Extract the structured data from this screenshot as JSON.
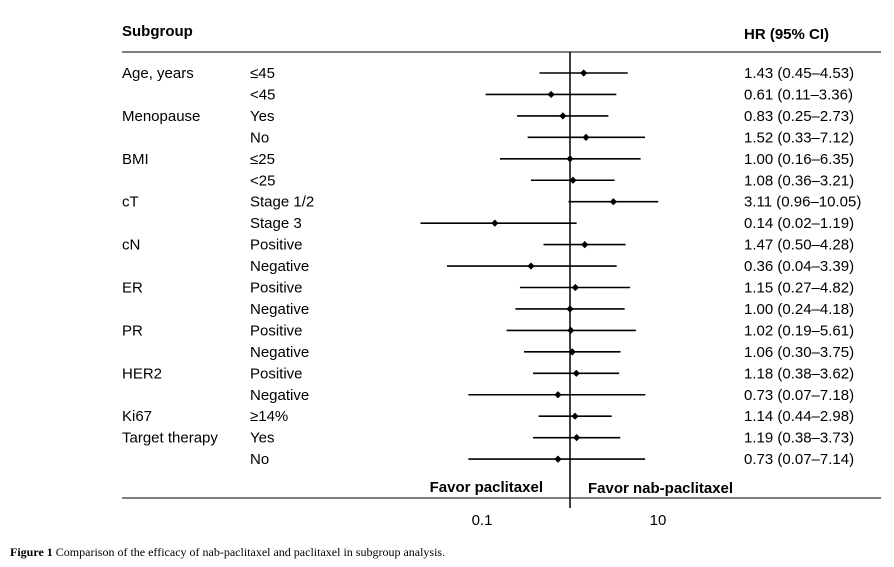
{
  "chart_data": {
    "type": "forest",
    "headers": {
      "subgroup": "Subgroup",
      "hr": "HR (95% CI)"
    },
    "x_scale": "log",
    "xlim": [
      0.01,
      20
    ],
    "null_value": 1,
    "x_ticks": [
      {
        "value": 0.1,
        "label": "0.1"
      },
      {
        "value": 10,
        "label": "10"
      }
    ],
    "favor_left": "Favor paclitaxel",
    "favor_right": "Favor nab-paclitaxel",
    "rows": [
      {
        "group": "Age, years",
        "level": "≤45",
        "hr": 1.43,
        "lo": 0.45,
        "hi": 4.53,
        "text": "1.43 (0.45–4.53)"
      },
      {
        "group": "",
        "level": "<45",
        "hr": 0.61,
        "lo": 0.11,
        "hi": 3.36,
        "text": "0.61 (0.11–3.36)"
      },
      {
        "group": "Menopause",
        "level": "Yes",
        "hr": 0.83,
        "lo": 0.25,
        "hi": 2.73,
        "text": "0.83 (0.25–2.73)"
      },
      {
        "group": "",
        "level": "No",
        "hr": 1.52,
        "lo": 0.33,
        "hi": 7.12,
        "text": "1.52 (0.33–7.12)"
      },
      {
        "group": "BMI",
        "level": "≤25",
        "hr": 1.0,
        "lo": 0.16,
        "hi": 6.35,
        "text": "1.00 (0.16–6.35)"
      },
      {
        "group": "",
        "level": "<25",
        "hr": 1.08,
        "lo": 0.36,
        "hi": 3.21,
        "text": "1.08 (0.36–3.21)"
      },
      {
        "group": "cT",
        "level": "Stage 1/2",
        "hr": 3.11,
        "lo": 0.96,
        "hi": 10.05,
        "text": "3.11 (0.96–10.05)"
      },
      {
        "group": "",
        "level": "Stage 3",
        "hr": 0.14,
        "lo": 0.02,
        "hi": 1.19,
        "text": "0.14 (0.02–1.19)"
      },
      {
        "group": "cN",
        "level": "Positive",
        "hr": 1.47,
        "lo": 0.5,
        "hi": 4.28,
        "text": "1.47 (0.50–4.28)"
      },
      {
        "group": "",
        "level": "Negative",
        "hr": 0.36,
        "lo": 0.04,
        "hi": 3.39,
        "text": "0.36 (0.04–3.39)"
      },
      {
        "group": "ER",
        "level": "Positive",
        "hr": 1.15,
        "lo": 0.27,
        "hi": 4.82,
        "text": "1.15 (0.27–4.82)"
      },
      {
        "group": "",
        "level": "Negative",
        "hr": 1.0,
        "lo": 0.24,
        "hi": 4.18,
        "text": "1.00 (0.24–4.18)"
      },
      {
        "group": "PR",
        "level": "Positive",
        "hr": 1.02,
        "lo": 0.19,
        "hi": 5.61,
        "text": "1.02 (0.19–5.61)"
      },
      {
        "group": "",
        "level": "Negative",
        "hr": 1.06,
        "lo": 0.3,
        "hi": 3.75,
        "text": "1.06 (0.30–3.75)"
      },
      {
        "group": "HER2",
        "level": "Positive",
        "hr": 1.18,
        "lo": 0.38,
        "hi": 3.62,
        "text": "1.18 (0.38–3.62)"
      },
      {
        "group": "",
        "level": "Negative",
        "hr": 0.73,
        "lo": 0.07,
        "hi": 7.18,
        "text": "0.73 (0.07–7.18)"
      },
      {
        "group": "Ki67",
        "level": "≥14%",
        "hr": 1.14,
        "lo": 0.44,
        "hi": 2.98,
        "text": "1.14 (0.44–2.98)"
      },
      {
        "group": "Target therapy",
        "level": "Yes",
        "hr": 1.19,
        "lo": 0.38,
        "hi": 3.73,
        "text": "1.19 (0.38–3.73)"
      },
      {
        "group": "",
        "level": "No",
        "hr": 0.73,
        "lo": 0.07,
        "hi": 7.14,
        "text": "0.73 (0.07–7.14)"
      }
    ]
  },
  "caption": {
    "label": "Figure 1",
    "text": " Comparison of the efficacy of nab-paclitaxel and paclitaxel in subgroup analysis."
  }
}
